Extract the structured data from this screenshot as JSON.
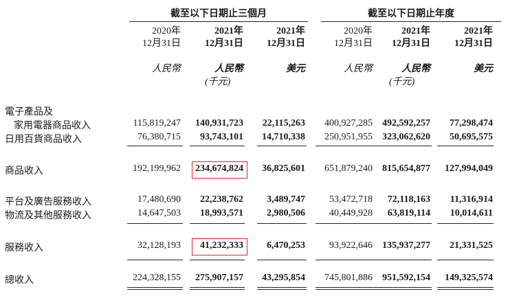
{
  "groups": [
    {
      "title": "截至以下日期止三個月"
    },
    {
      "title": "截至以下日期止年度"
    }
  ],
  "columns": [
    {
      "year": "2020年",
      "date": "12月31日",
      "currency": "人民幣",
      "unit": ""
    },
    {
      "year": "2021年",
      "date": "12月31日",
      "currency": "人民幣",
      "unit": "(千元)"
    },
    {
      "year": "2021年",
      "date": "12月31日",
      "currency": "美元",
      "unit": ""
    },
    {
      "year": "2020年",
      "date": "12月31日",
      "currency": "人民幣",
      "unit": ""
    },
    {
      "year": "2021年",
      "date": "12月31日",
      "currency": "人民幣",
      "unit": "(千元)"
    },
    {
      "year": "2021年",
      "date": "12月31日",
      "currency": "美元",
      "unit": ""
    }
  ],
  "rows": [
    {
      "label": "電子產品及",
      "values": []
    },
    {
      "label": "家用電器商品收入",
      "values": [
        "115,819,247",
        "140,931,723",
        "22,115,263",
        "400,927,285",
        "492,592,257",
        "77,298,474"
      ]
    },
    {
      "label": "日用百貨商品收入",
      "values": [
        "76,380,715",
        "93,743,101",
        "14,710,338",
        "250,951,955",
        "323,062,620",
        "50,695,575"
      ]
    },
    {
      "label": "商品收入",
      "values": [
        "192,199,962",
        "234,674,824",
        "36,825,601",
        "651,879,240",
        "815,654,877",
        "127,994,049"
      ]
    },
    {
      "label": "平台及廣告服務收入",
      "values": [
        "17,480,690",
        "22,238,762",
        "3,489,747",
        "53,472,718",
        "72,118,163",
        "11,316,914"
      ]
    },
    {
      "label": "物流及其他服務收入",
      "values": [
        "14,647,503",
        "18,993,571",
        "2,980,506",
        "40,449,928",
        "63,819,114",
        "10,014,611"
      ]
    },
    {
      "label": "服務收入",
      "values": [
        "32,128,193",
        "41,232,333",
        "6,470,253",
        "93,922,646",
        "135,937,277",
        "21,331,525"
      ]
    },
    {
      "label": "總收入",
      "values": [
        "224,328,155",
        "275,907,157",
        "43,295,854",
        "745,801,886",
        "951,592,154",
        "149,325,574"
      ]
    }
  ]
}
